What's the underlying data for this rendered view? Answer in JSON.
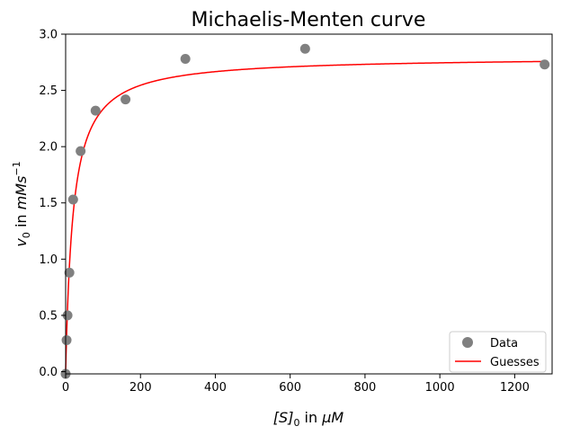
{
  "chart_data": {
    "type": "scatter",
    "title": "Michaelis-Menten curve",
    "xlabel": {
      "pre": "[S]",
      "sub": "0",
      "mid": " in ",
      "unit": "μM"
    },
    "ylabel": {
      "pre": "v",
      "sub": "0",
      "mid": " in ",
      "unit": "mMs",
      "sup": "−1"
    },
    "xlim": [
      0,
      1300
    ],
    "ylim": [
      -0.02,
      3.0
    ],
    "xticks": [
      0,
      200,
      400,
      600,
      800,
      1000,
      1200
    ],
    "yticks": [
      0.0,
      0.5,
      1.0,
      1.5,
      2.0,
      2.5,
      3.0
    ],
    "xtick_labels": [
      "0",
      "200",
      "400",
      "600",
      "800",
      "1000",
      "1200"
    ],
    "ytick_labels": [
      "0.0",
      "0.5",
      "1.0",
      "1.5",
      "2.0",
      "2.5",
      "3.0"
    ],
    "grid": false,
    "legend_position": "lower-right",
    "series": [
      {
        "name": "Data",
        "kind": "markers",
        "color": "#808080",
        "x": [
          0,
          2.5,
          5,
          10,
          20,
          40,
          80,
          160,
          320,
          640,
          1280
        ],
        "y": [
          -0.02,
          0.28,
          0.5,
          0.88,
          1.53,
          1.96,
          2.32,
          2.42,
          2.78,
          2.87,
          2.73
        ]
      },
      {
        "name": "Guesses",
        "kind": "line",
        "color": "#ff0000",
        "model": "michaelis-menten",
        "vmax": 2.8,
        "km": 20,
        "x_range": [
          0,
          1280
        ]
      }
    ]
  }
}
